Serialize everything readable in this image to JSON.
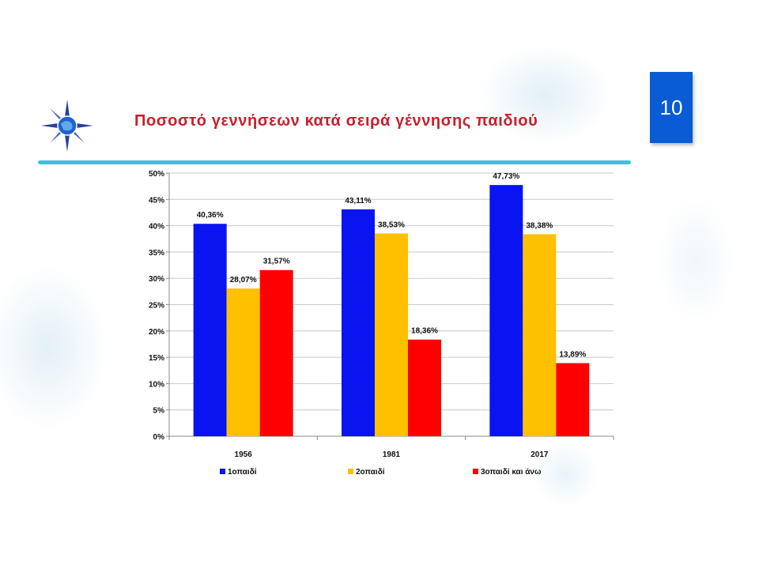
{
  "slide": {
    "title": "Ποσοστό γεννήσεων κατά σειρά γέννησης παιδιού",
    "number": "10"
  },
  "logo": {
    "icon": "compass-star-logo-icon"
  },
  "colors": {
    "title": "#c8202a",
    "slide_number_bg": "#0a5bd6",
    "rule": "#3fc1dc"
  },
  "chart_data": {
    "type": "bar",
    "title": "",
    "xlabel": "",
    "ylabel": "",
    "categories": [
      "1956",
      "1981",
      "2017"
    ],
    "series": [
      {
        "name": "1οπαιδί",
        "color": "#0a14f0",
        "values": [
          40.36,
          43.11,
          47.73
        ],
        "labels": [
          "40,36%",
          "43,11%",
          "47,73%"
        ]
      },
      {
        "name": "2οπαιδί",
        "color": "#ffc000",
        "values": [
          28.07,
          38.53,
          38.38
        ],
        "labels": [
          "28,07%",
          "38,53%",
          "38,38%"
        ]
      },
      {
        "name": "3οπαιδί και άνω",
        "color": "#ff0000",
        "values": [
          31.57,
          18.36,
          13.89
        ],
        "labels": [
          "31,57%",
          "18,36%",
          "13,89%"
        ]
      }
    ],
    "ylim": [
      0,
      50
    ],
    "yticks": [
      0,
      5,
      10,
      15,
      20,
      25,
      30,
      35,
      40,
      45,
      50
    ],
    "ytick_labels": [
      "0%",
      "5%",
      "10%",
      "15%",
      "20%",
      "25%",
      "30%",
      "35%",
      "40%",
      "45%",
      "50%"
    ],
    "grid": true,
    "legend_position": "bottom"
  }
}
